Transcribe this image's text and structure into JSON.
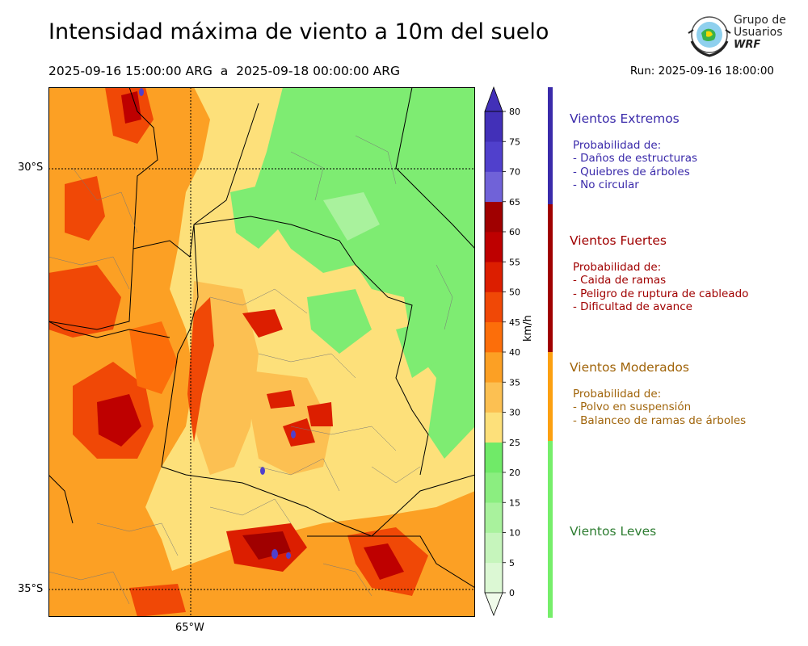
{
  "header": {
    "title": "Intensidad máxima de viento a 10m del suelo",
    "period": "2025-09-16 15:00:00 ARG  a  2025-09-18 00:00:00 ARG",
    "run": "Run: 2025-09-16 18:00:00"
  },
  "logo": {
    "line1": "Grupo de",
    "line2": "Usuarios",
    "line3": "WRF"
  },
  "map": {
    "lat_labels": [
      "30°S",
      "35°S"
    ],
    "lon_labels": [
      "65°W"
    ]
  },
  "colorbar": {
    "units": "km/h",
    "ticks": [
      "0",
      "5",
      "10",
      "15",
      "20",
      "25",
      "30",
      "35",
      "40",
      "45",
      "50",
      "55",
      "60",
      "65",
      "70",
      "75",
      "80"
    ],
    "colors": [
      "#f0fbea",
      "#dcf8d4",
      "#c6f5bc",
      "#a9f29d",
      "#8bee80",
      "#70ea68",
      "#fde07a",
      "#fcc052",
      "#fca024",
      "#fc6e0a",
      "#f04806",
      "#dc1e00",
      "#be0000",
      "#a00000",
      "#7062d8",
      "#5040cc",
      "#4230b8"
    ]
  },
  "legend": {
    "categories": [
      {
        "title": "Vientos Extremos",
        "color": "#3a2aaa",
        "lines": [
          "Probabilidad de:",
          "- Daños de estructuras",
          "- Quiebres de árboles",
          "- No circular"
        ]
      },
      {
        "title": "Vientos Fuertes",
        "color": "#a00000",
        "lines": [
          "Probabilidad de:",
          "- Caida de ramas",
          "- Peligro de ruptura de cableado",
          "- Dificultad de avance"
        ]
      },
      {
        "title": "Vientos Moderados",
        "color": "#a0640a",
        "bar_color": "#fca010",
        "lines": [
          "Probabilidad de:",
          "- Polvo en suspensión",
          "- Balanceo de ramas de árboles"
        ]
      },
      {
        "title": "Vientos Leves",
        "color": "#2e7d32",
        "bar_color": "#76ee6a",
        "lines": []
      }
    ]
  }
}
